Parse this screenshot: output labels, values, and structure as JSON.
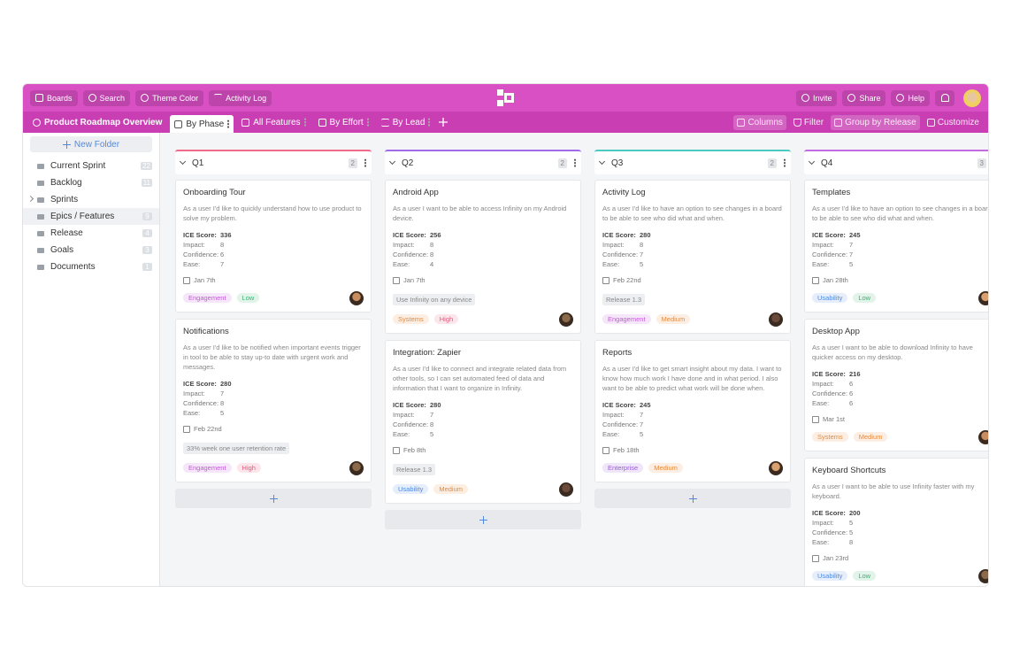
{
  "toolbar": {
    "left": [
      "Boards",
      "Search",
      "Theme Color",
      "Activity Log"
    ],
    "right": [
      "Invite",
      "Share",
      "Help"
    ]
  },
  "tabs": {
    "view_title": "Product Roadmap Overview",
    "views": [
      "By Phase",
      "All Features",
      "By Effort",
      "By Lead"
    ],
    "actions": [
      "Columns",
      "Filter",
      "Group by Release",
      "Customize"
    ]
  },
  "sidebar": {
    "new_folder": "New Folder",
    "items": [
      {
        "label": "Current Sprint",
        "count": 22
      },
      {
        "label": "Backlog",
        "count": 11
      },
      {
        "label": "Sprints"
      },
      {
        "label": "Epics / Features",
        "count": 9
      },
      {
        "label": "Release",
        "count": 4
      },
      {
        "label": "Goals",
        "count": 3
      },
      {
        "label": "Documents",
        "count": 1
      }
    ]
  },
  "card_labels": {
    "ice": "ICE Score:",
    "impact": "Impact:",
    "confidence": "Confidence:",
    "ease": "Ease:"
  },
  "columns": [
    {
      "title": "Q1",
      "count": 2,
      "color": "#f06a8a",
      "cards": [
        {
          "title": "Onboarding Tour",
          "description": "As a user I'd like to quickly understand how to use product to solve my problem.",
          "ice": 336,
          "impact": 8,
          "confidence": 6,
          "ease": 7,
          "date": "Jan 7th",
          "tags": [
            {
              "label": "Engagement",
              "color": "#c45ad9"
            },
            {
              "label": "Low",
              "color": "#3bb273"
            }
          ]
        },
        {
          "title": "Notifications",
          "description": "As a user I'd like to be notified when important events trigger in tool to be able to stay up-to date with urgent work and messages.",
          "ice": 280,
          "impact": 7,
          "confidence": 8,
          "ease": 5,
          "date": "Feb 22nd",
          "note": "33% week one user retention rate",
          "tags": [
            {
              "label": "Engagement",
              "color": "#c45ad9"
            },
            {
              "label": "High",
              "color": "#e8557a"
            }
          ]
        }
      ]
    },
    {
      "title": "Q2",
      "count": 2,
      "color": "#a16ae8",
      "cards": [
        {
          "title": "Android App",
          "description": "As a user I want to be able to access Infinity on my Android device.",
          "ice": 256,
          "impact": 8,
          "confidence": 8,
          "ease": 4,
          "date": "Jan 7th",
          "note": "Use Infinity on any device",
          "tags": [
            {
              "label": "Systems",
              "color": "#e88a3c"
            },
            {
              "label": "High",
              "color": "#e8557a"
            }
          ]
        },
        {
          "title": "Integration: Zapier",
          "description": "As a user I'd like to connect and integrate related data from other tools, so I can set automated feed of data and information that I want to organize in Infinity.",
          "ice": 280,
          "impact": 7,
          "confidence": 8,
          "ease": 5,
          "date": "Feb 8th",
          "note": "Release 1.3",
          "tags": [
            {
              "label": "Usability",
              "color": "#4f8ae0"
            },
            {
              "label": "Medium",
              "color": "#e88a3c"
            }
          ]
        }
      ]
    },
    {
      "title": "Q3",
      "count": 2,
      "color": "#4cc9c0",
      "cards": [
        {
          "title": "Activity Log",
          "description": "As a user I'd like to have an option to see changes in a board to be able to see who did what and when.",
          "ice": 280,
          "impact": 8,
          "confidence": 7,
          "ease": 5,
          "date": "Feb 22nd",
          "note": "Release 1.3",
          "tags": [
            {
              "label": "Engagement",
              "color": "#c45ad9"
            },
            {
              "label": "Medium",
              "color": "#e88a3c"
            }
          ]
        },
        {
          "title": "Reports",
          "description": "As a user I'd like to get smart insight about my data. I want to know how much work I have done and in what period. I also want to be able to predict what work will be done when.",
          "ice": 245,
          "impact": 7,
          "confidence": 7,
          "ease": 5,
          "date": "Feb 18th",
          "tags": [
            {
              "label": "Enterprise",
              "color": "#9a5ad9"
            },
            {
              "label": "Medium",
              "color": "#e88a3c"
            }
          ]
        }
      ]
    },
    {
      "title": "Q4",
      "count": 3,
      "color": "#c46ae0",
      "cards": [
        {
          "title": "Templates",
          "description": "As a user I'd like to have an option to see changes in a board to be able to see who did what and when.",
          "ice": 245,
          "impact": 7,
          "confidence": 7,
          "ease": 5,
          "date": "Jan 28th",
          "tags": [
            {
              "label": "Usability",
              "color": "#4f8ae0"
            },
            {
              "label": "Low",
              "color": "#3bb273"
            }
          ]
        },
        {
          "title": "Desktop App",
          "description": "As a user I want to be able to download Infinity to have quicker access on my desktop.",
          "ice": 216,
          "impact": 6,
          "confidence": 6,
          "ease": 6,
          "date": "Mar 1st",
          "tags": [
            {
              "label": "Systems",
              "color": "#e88a3c"
            },
            {
              "label": "Medium",
              "color": "#e88a3c"
            }
          ]
        },
        {
          "title": "Keyboard Shortcuts",
          "description": "As a user I want to be able to use Infinity faster with my keyboard.",
          "ice": 200,
          "impact": 5,
          "confidence": 5,
          "ease": 8,
          "date": "Jan 23rd",
          "tags": [
            {
              "label": "Usability",
              "color": "#4f8ae0"
            },
            {
              "label": "Low",
              "color": "#3bb273"
            }
          ]
        }
      ]
    }
  ]
}
